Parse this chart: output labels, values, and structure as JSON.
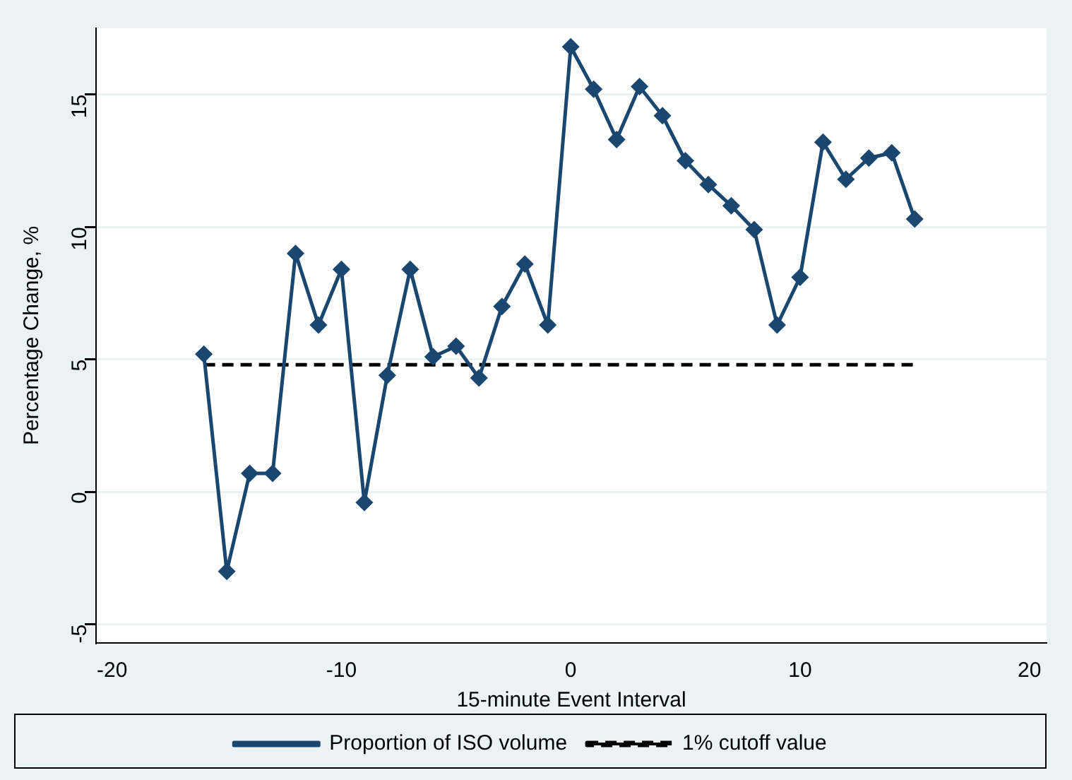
{
  "chart_data": {
    "type": "line",
    "xlabel": "15-minute Event Interval",
    "ylabel": "Percentage Change, %",
    "xlim": [
      -20.7,
      20.75
    ],
    "xticks": [
      -20,
      -10,
      0,
      10,
      20
    ],
    "ylim": [
      -5.7,
      17.5
    ],
    "yticks": [
      -5,
      0,
      5,
      10,
      15
    ],
    "grid": "y",
    "legend": "bottom",
    "marker": "diamond",
    "series": [
      {
        "name": "Proportion of ISO volume",
        "color": "#1a476f",
        "x": [
          -16,
          -15,
          -14,
          -13,
          -12,
          -11,
          -10,
          -9,
          -8,
          -7,
          -6,
          -5,
          -4,
          -3,
          -2,
          -1,
          0,
          1,
          2,
          3,
          4,
          5,
          6,
          7,
          8,
          9,
          10,
          11,
          12,
          13,
          14,
          15
        ],
        "values": [
          5.2,
          -3.0,
          0.7,
          0.7,
          9.0,
          6.3,
          8.4,
          -0.4,
          4.4,
          8.4,
          5.1,
          5.5,
          4.3,
          7.0,
          8.6,
          6.3,
          16.8,
          15.2,
          13.3,
          15.3,
          14.2,
          12.5,
          11.6,
          10.8,
          9.9,
          6.3,
          8.1,
          13.2,
          11.8,
          12.6,
          12.8,
          10.3
        ]
      },
      {
        "name": "1% cutoff value",
        "color": "#000000",
        "marker": "none",
        "line_style": "dashed",
        "x": [
          -16,
          15
        ],
        "values": [
          4.8,
          4.8
        ]
      }
    ]
  }
}
